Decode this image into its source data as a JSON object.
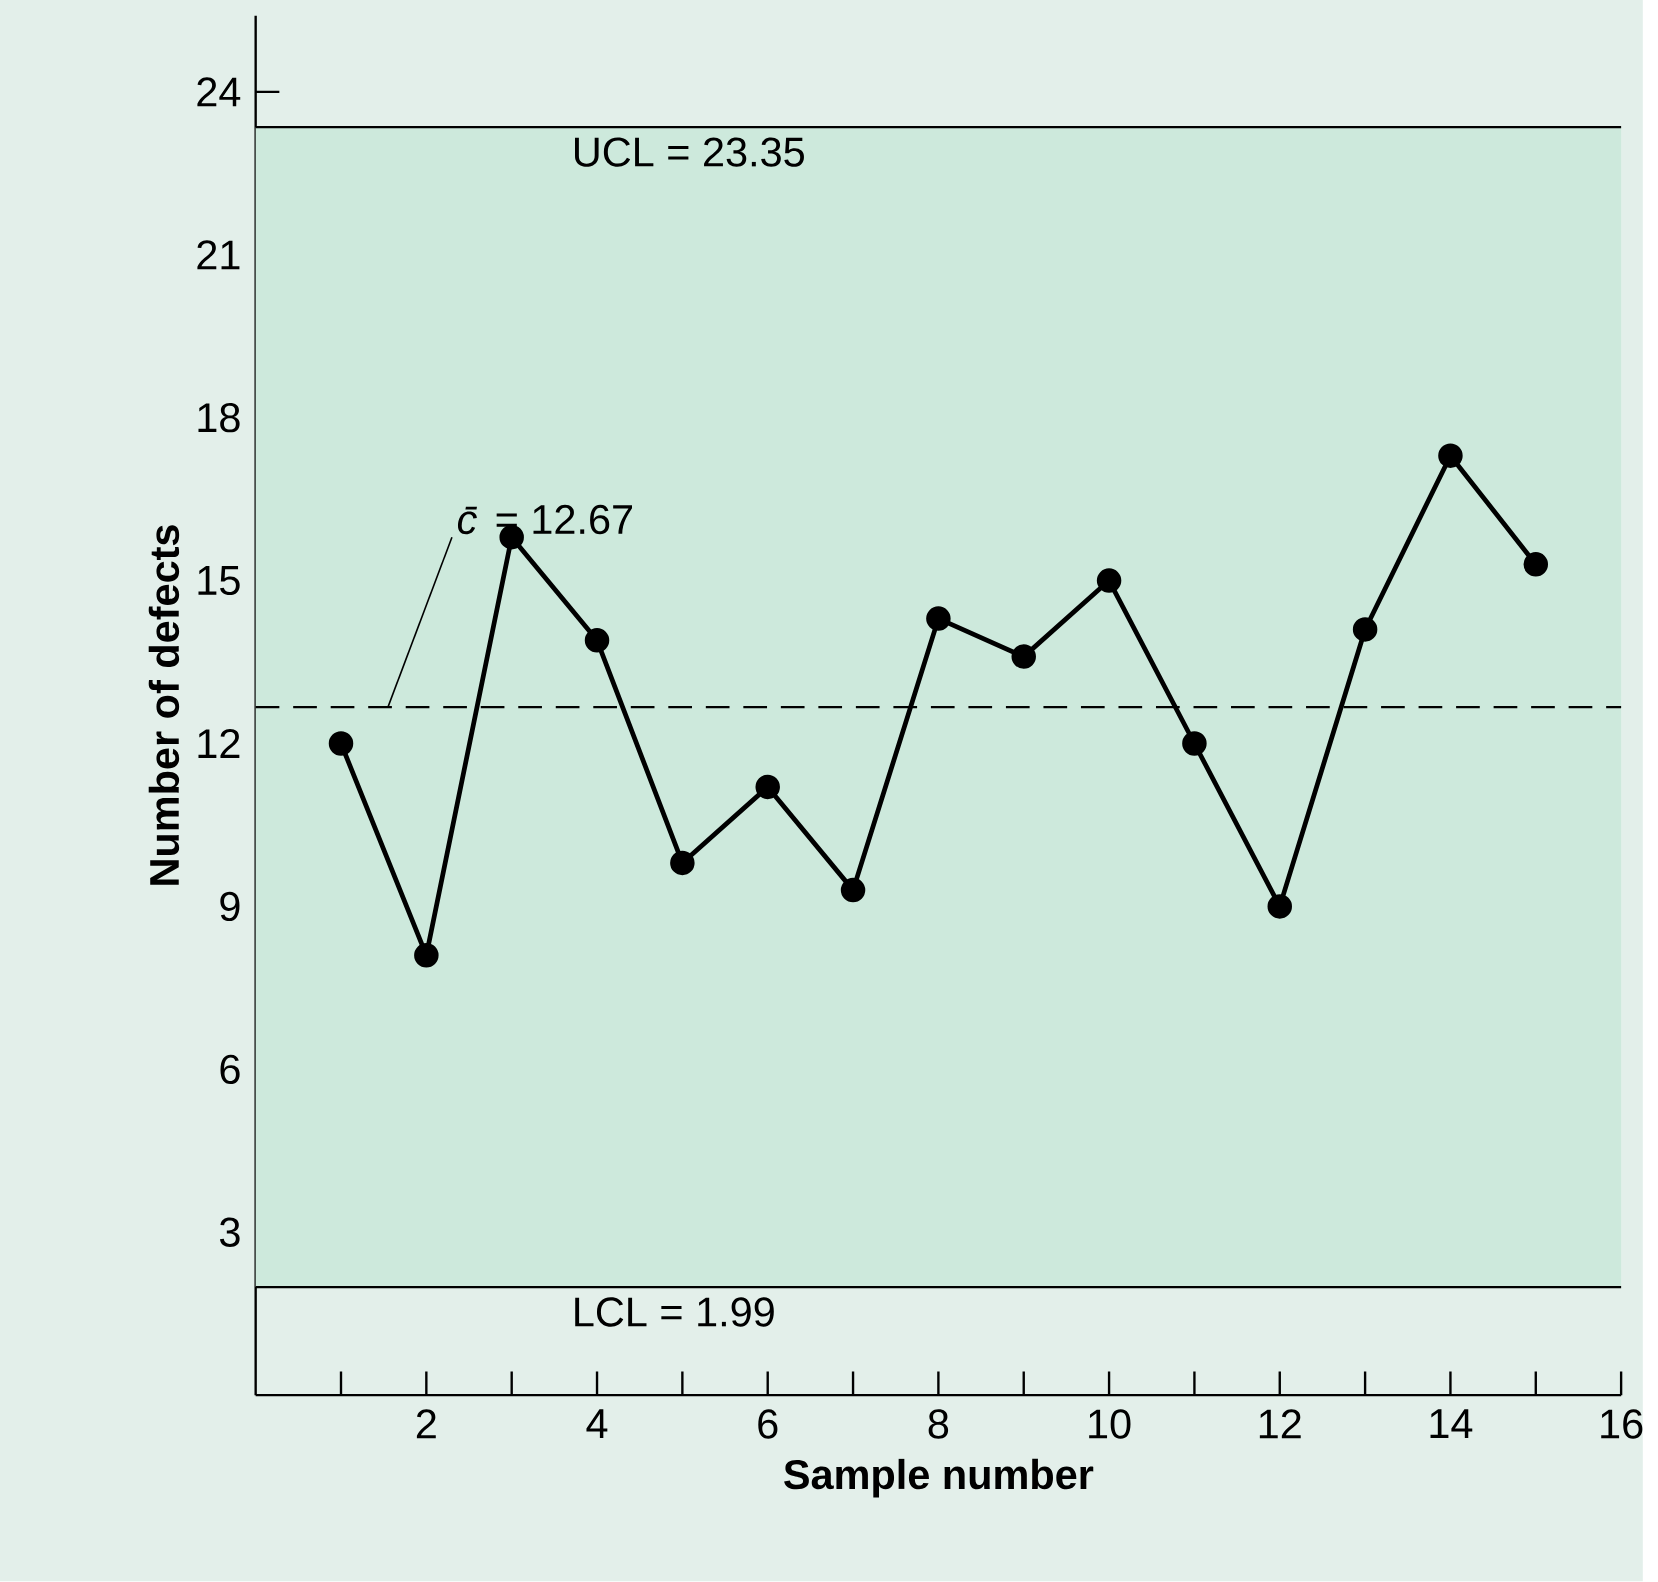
{
  "chart_data": {
    "type": "line",
    "xlabel": "Sample number",
    "ylabel": "Number of defects",
    "x": [
      1,
      2,
      3,
      4,
      5,
      6,
      7,
      8,
      9,
      10,
      11,
      12,
      13,
      14,
      15
    ],
    "series": [
      {
        "color": "#000000",
        "values": [
          12,
          8.1,
          15.8,
          13.9,
          9.8,
          11.2,
          9.3,
          14.3,
          13.6,
          15.0,
          12,
          9,
          14.1,
          17.3,
          15.3
        ]
      }
    ],
    "xlim": [
      0,
      16
    ],
    "xticks": [
      {
        "value": 1,
        "label": null
      },
      2,
      {
        "value": 3,
        "label": null
      },
      4,
      {
        "value": 5,
        "label": null
      },
      6,
      {
        "value": 7,
        "label": null
      },
      8,
      {
        "value": 9,
        "label": null
      },
      10,
      {
        "value": 11,
        "label": null
      },
      12,
      {
        "value": 13,
        "label": null
      },
      14,
      {
        "value": 15,
        "label": null
      },
      16
    ],
    "ylim": [
      0,
      25.4
    ],
    "yticks": [
      3,
      6,
      9,
      12,
      15,
      18,
      21,
      24
    ],
    "bands": [
      {
        "axis": "y",
        "from": 1.99,
        "to": 23.35,
        "color": "#cde9dc"
      }
    ],
    "ref_lines": [
      {
        "axis": "y",
        "value": 23.35,
        "label": "UCL = 23.35",
        "line_style": "solid",
        "color": "#000000"
      },
      {
        "axis": "y",
        "value": 12.67,
        "label": "*c̄* = 12.67",
        "line_style": "dashed",
        "color": "#000000"
      },
      {
        "axis": "y",
        "value": 1.99,
        "label": "LCL = 1.99",
        "line_style": "solid",
        "color": "#000000"
      }
    ],
    "marker": "circle",
    "line_style": "solid",
    "grid": false
  }
}
